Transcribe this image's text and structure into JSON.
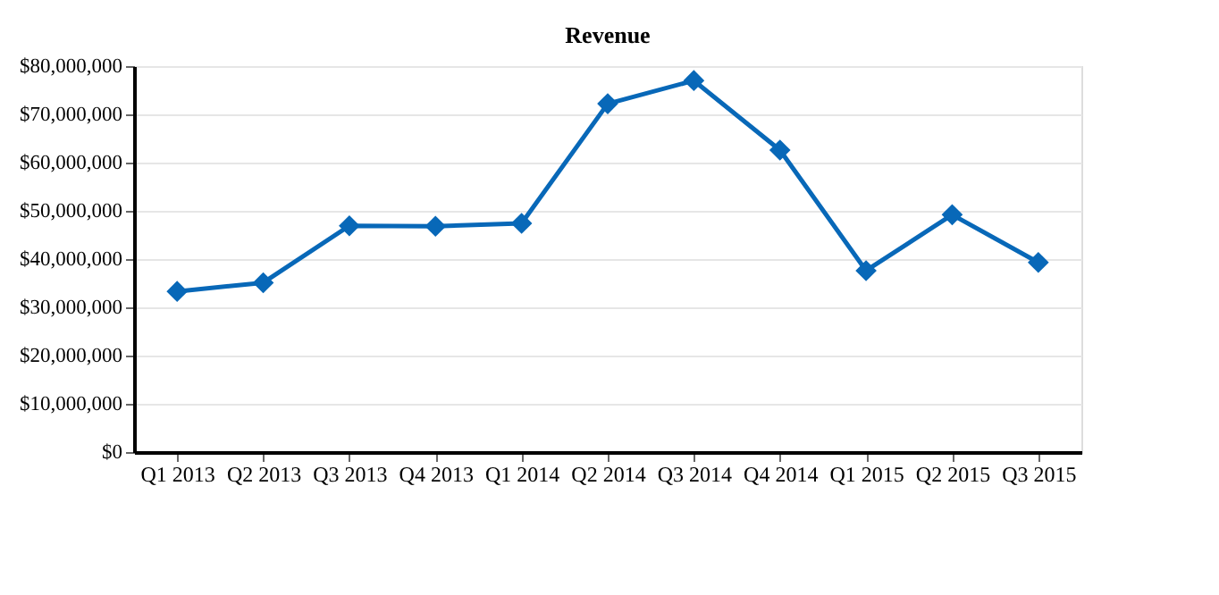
{
  "chart_data": {
    "type": "line",
    "title": "Revenue",
    "categories": [
      "Q1 2013",
      "Q2 2013",
      "Q3 2013",
      "Q4 2013",
      "Q1 2014",
      "Q2 2014",
      "Q3 2014",
      "Q4 2014",
      "Q1 2015",
      "Q2 2015",
      "Q3 2015"
    ],
    "series": [
      {
        "color": "#0868b8",
        "values": [
          33300000,
          35100000,
          46900000,
          46800000,
          47400000,
          72200000,
          77000000,
          62600000,
          37600000,
          49200000,
          39300000
        ]
      }
    ],
    "ylim": [
      0,
      80000000
    ],
    "yticks": [
      {
        "value": 0,
        "label": "$0"
      },
      {
        "value": 10000000,
        "label": "$10,000,000"
      },
      {
        "value": 20000000,
        "label": "$20,000,000"
      },
      {
        "value": 30000000,
        "label": "$30,000,000"
      },
      {
        "value": 40000000,
        "label": "$40,000,000"
      },
      {
        "value": 50000000,
        "label": "$50,000,000"
      },
      {
        "value": 60000000,
        "label": "$60,000,000"
      },
      {
        "value": 70000000,
        "label": "$70,000,000"
      },
      {
        "value": 80000000,
        "label": "$80,000,000"
      }
    ],
    "grid": "y",
    "marker": "diamond",
    "line_style": "solid",
    "legend": false
  }
}
